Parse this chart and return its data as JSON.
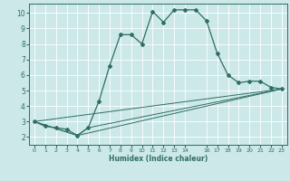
{
  "xlabel": "Humidex (Indice chaleur)",
  "bg_color": "#cce8e8",
  "grid_color": "#ffffff",
  "line_color": "#2e6e63",
  "xlim": [
    -0.5,
    23.5
  ],
  "ylim": [
    1.5,
    10.6
  ],
  "xticks": [
    0,
    1,
    2,
    3,
    4,
    5,
    6,
    7,
    8,
    9,
    10,
    11,
    12,
    13,
    14,
    16,
    17,
    18,
    19,
    20,
    21,
    22,
    23
  ],
  "yticks": [
    2,
    3,
    4,
    5,
    6,
    7,
    8,
    9,
    10
  ],
  "series1_x": [
    0,
    1,
    2,
    3,
    4,
    5,
    6,
    7,
    8,
    9,
    10,
    11,
    12,
    13,
    14,
    15,
    16,
    17,
    18,
    19,
    20,
    21,
    22,
    23
  ],
  "series1_y": [
    3.0,
    2.7,
    2.6,
    2.5,
    2.1,
    2.6,
    4.3,
    6.6,
    8.6,
    8.6,
    8.0,
    10.1,
    9.4,
    10.2,
    10.2,
    10.2,
    9.5,
    7.4,
    6.0,
    5.5,
    5.6,
    5.6,
    5.2,
    5.1
  ],
  "series2_x": [
    0,
    4,
    5,
    23
  ],
  "series2_y": [
    3.0,
    2.1,
    2.6,
    5.1
  ],
  "series3_x": [
    0,
    23
  ],
  "series3_y": [
    3.0,
    5.1
  ],
  "series4_x": [
    0,
    4,
    23
  ],
  "series4_y": [
    3.0,
    2.1,
    5.1
  ]
}
